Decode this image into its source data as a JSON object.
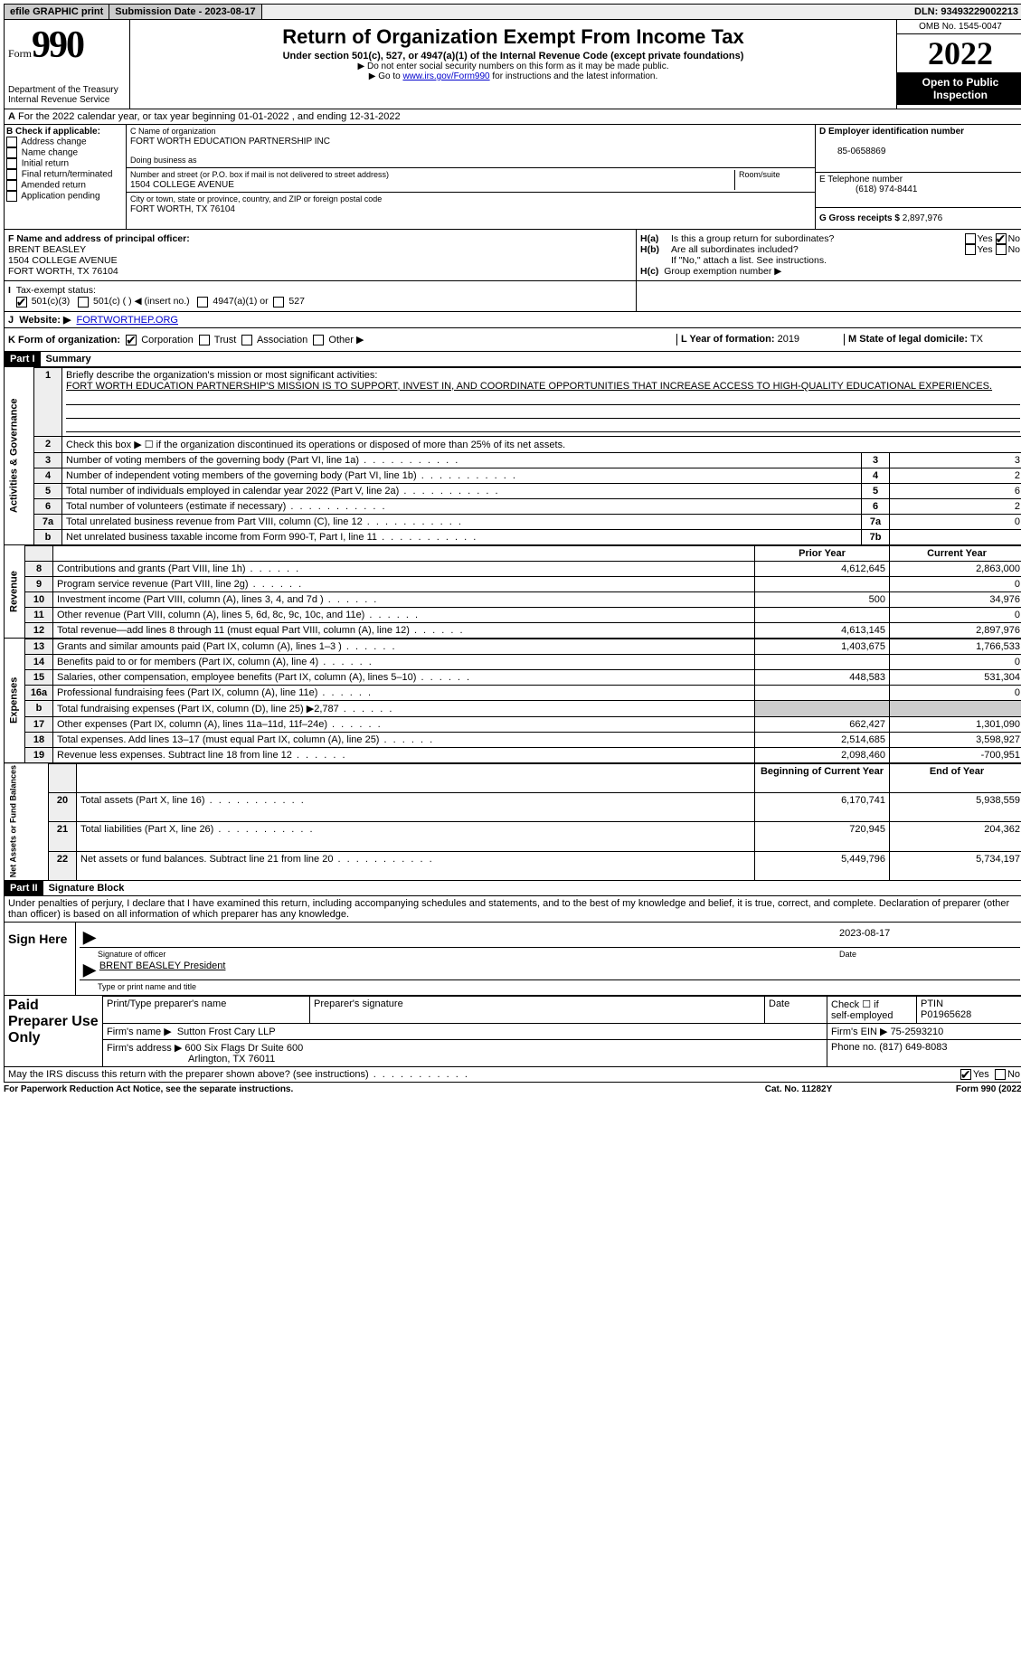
{
  "topbar": {
    "efile": "efile GRAPHIC print",
    "submission_label": "Submission Date - 2023-08-17",
    "dln": "DLN: 93493229002213"
  },
  "header": {
    "form_word": "Form",
    "form_num": "990",
    "dept": "Department of the Treasury",
    "irs": "Internal Revenue Service",
    "title": "Return of Organization Exempt From Income Tax",
    "subtitle": "Under section 501(c), 527, or 4947(a)(1) of the Internal Revenue Code (except private foundations)",
    "note1": "▶ Do not enter social security numbers on this form as it may be made public.",
    "note2_pre": "▶ Go to ",
    "note2_link": "www.irs.gov/Form990",
    "note2_post": " for instructions and the latest information.",
    "omb": "OMB No. 1545-0047",
    "year": "2022",
    "inspect": "Open to Public Inspection"
  },
  "line_a": "For the 2022 calendar year, or tax year beginning 01-01-2022    , and ending 12-31-2022",
  "box_b": {
    "title": "B Check if applicable:",
    "opts": [
      "Address change",
      "Name change",
      "Initial return",
      "Final return/terminated",
      "Amended return",
      "Application pending"
    ]
  },
  "box_c": {
    "label": "C Name of organization",
    "name": "FORT WORTH EDUCATION PARTNERSHIP INC",
    "dba_label": "Doing business as",
    "addr_label": "Number and street (or P.O. box if mail is not delivered to street address)",
    "room_label": "Room/suite",
    "addr": "1504 COLLEGE AVENUE",
    "city_label": "City or town, state or province, country, and ZIP or foreign postal code",
    "city": "FORT WORTH, TX  76104"
  },
  "box_d": {
    "label": "D Employer identification number",
    "val": "85-0658869"
  },
  "box_e": {
    "label": "E Telephone number",
    "val": "(618) 974-8441"
  },
  "box_g": {
    "label": "G Gross receipts $",
    "val": "2,897,976"
  },
  "box_f": {
    "label": "F  Name and address of principal officer:",
    "name": "BRENT BEASLEY",
    "addr1": "1504 COLLEGE AVENUE",
    "addr2": "FORT WORTH, TX  76104"
  },
  "box_h": {
    "a": "Is this a group return for subordinates?",
    "b": "Are all subordinates included?",
    "note": "If \"No,\" attach a list. See instructions.",
    "c": "Group exemption number ▶"
  },
  "box_i": {
    "label": "Tax-exempt status:",
    "opts": [
      "501(c)(3)",
      "501(c) (  ) ◀ (insert no.)",
      "4947(a)(1) or",
      "527"
    ]
  },
  "box_j": {
    "label": "Website: ▶",
    "val": "FORTWORTHEP.ORG"
  },
  "box_k": {
    "label": "K Form of organization:",
    "opts": [
      "Corporation",
      "Trust",
      "Association",
      "Other ▶"
    ]
  },
  "box_l": {
    "label": "L Year of formation:",
    "val": "2019"
  },
  "box_m": {
    "label": "M State of legal domicile:",
    "val": "TX"
  },
  "part1": {
    "bar": "Part I",
    "title": "Summary"
  },
  "mission_label": "Briefly describe the organization's mission or most significant activities:",
  "mission": "FORT WORTH EDUCATION PARTNERSHIP'S MISSION IS TO SUPPORT, INVEST IN, AND COORDINATE OPPORTUNITIES THAT INCREASE ACCESS TO HIGH-QUALITY EDUCATIONAL EXPERIENCES.",
  "line2": "Check this box ▶ ☐ if the organization discontinued its operations or disposed of more than 25% of its net assets.",
  "lines_ag": [
    {
      "n": "3",
      "t": "Number of voting members of the governing body (Part VI, line 1a)",
      "r": "3",
      "v": "3"
    },
    {
      "n": "4",
      "t": "Number of independent voting members of the governing body (Part VI, line 1b)",
      "r": "4",
      "v": "2"
    },
    {
      "n": "5",
      "t": "Total number of individuals employed in calendar year 2022 (Part V, line 2a)",
      "r": "5",
      "v": "6"
    },
    {
      "n": "6",
      "t": "Total number of volunteers (estimate if necessary)",
      "r": "6",
      "v": "2"
    },
    {
      "n": "7a",
      "t": "Total unrelated business revenue from Part VIII, column (C), line 12",
      "r": "7a",
      "v": "0"
    },
    {
      "n": "b",
      "t": "Net unrelated business taxable income from Form 990-T, Part I, line 11",
      "r": "7b",
      "v": ""
    }
  ],
  "hdr_prior": "Prior Year",
  "hdr_curr": "Current Year",
  "rev": [
    {
      "n": "8",
      "t": "Contributions and grants (Part VIII, line 1h)",
      "p": "4,612,645",
      "c": "2,863,000"
    },
    {
      "n": "9",
      "t": "Program service revenue (Part VIII, line 2g)",
      "p": "",
      "c": "0"
    },
    {
      "n": "10",
      "t": "Investment income (Part VIII, column (A), lines 3, 4, and 7d )",
      "p": "500",
      "c": "34,976"
    },
    {
      "n": "11",
      "t": "Other revenue (Part VIII, column (A), lines 5, 6d, 8c, 9c, 10c, and 11e)",
      "p": "",
      "c": "0"
    },
    {
      "n": "12",
      "t": "Total revenue—add lines 8 through 11 (must equal Part VIII, column (A), line 12)",
      "p": "4,613,145",
      "c": "2,897,976"
    }
  ],
  "exp": [
    {
      "n": "13",
      "t": "Grants and similar amounts paid (Part IX, column (A), lines 1–3 )",
      "p": "1,403,675",
      "c": "1,766,533"
    },
    {
      "n": "14",
      "t": "Benefits paid to or for members (Part IX, column (A), line 4)",
      "p": "",
      "c": "0"
    },
    {
      "n": "15",
      "t": "Salaries, other compensation, employee benefits (Part IX, column (A), lines 5–10)",
      "p": "448,583",
      "c": "531,304"
    },
    {
      "n": "16a",
      "t": "Professional fundraising fees (Part IX, column (A), line 11e)",
      "p": "",
      "c": "0"
    },
    {
      "n": "b",
      "t": "Total fundraising expenses (Part IX, column (D), line 25) ▶2,787",
      "p": "SHADE",
      "c": "SHADE"
    },
    {
      "n": "17",
      "t": "Other expenses (Part IX, column (A), lines 11a–11d, 11f–24e)",
      "p": "662,427",
      "c": "1,301,090"
    },
    {
      "n": "18",
      "t": "Total expenses. Add lines 13–17 (must equal Part IX, column (A), line 25)",
      "p": "2,514,685",
      "c": "3,598,927"
    },
    {
      "n": "19",
      "t": "Revenue less expenses. Subtract line 18 from line 12",
      "p": "2,098,460",
      "c": "-700,951"
    }
  ],
  "hdr_beg": "Beginning of Current Year",
  "hdr_end": "End of Year",
  "net": [
    {
      "n": "20",
      "t": "Total assets (Part X, line 16)",
      "p": "6,170,741",
      "c": "5,938,559"
    },
    {
      "n": "21",
      "t": "Total liabilities (Part X, line 26)",
      "p": "720,945",
      "c": "204,362"
    },
    {
      "n": "22",
      "t": "Net assets or fund balances. Subtract line 21 from line 20",
      "p": "5,449,796",
      "c": "5,734,197"
    }
  ],
  "part2": {
    "bar": "Part II",
    "title": "Signature Block"
  },
  "penalty": "Under penalties of perjury, I declare that I have examined this return, including accompanying schedules and statements, and to the best of my knowledge and belief, it is true, correct, and complete. Declaration of preparer (other than officer) is based on all information of which preparer has any knowledge.",
  "sign": {
    "here": "Sign Here",
    "sig_label": "Signature of officer",
    "date": "2023-08-17",
    "date_label": "Date",
    "name": "BRENT BEASLEY  President",
    "name_label": "Type or print name and title"
  },
  "prep": {
    "title": "Paid Preparer Use Only",
    "h1": "Print/Type preparer's name",
    "h2": "Preparer's signature",
    "h3": "Date",
    "h4a": "Check ☐ if",
    "h4b": "self-employed",
    "h5": "PTIN",
    "ptin": "P01965628",
    "firm_label": "Firm's name   ▶",
    "firm": "Sutton Frost Cary LLP",
    "ein_label": "Firm's EIN ▶",
    "ein": "75-2593210",
    "addr_label": "Firm's address ▶",
    "addr1": "600 Six Flags Dr Suite 600",
    "addr2": "Arlington, TX  76011",
    "phone_label": "Phone no.",
    "phone": "(817) 649-8083"
  },
  "discuss": "May the IRS discuss this return with the preparer shown above? (see instructions)",
  "footer": {
    "left": "For Paperwork Reduction Act Notice, see the separate instructions.",
    "mid": "Cat. No. 11282Y",
    "right": "Form 990 (2022)"
  },
  "labels": {
    "vert_ag": "Activities & Governance",
    "vert_rev": "Revenue",
    "vert_exp": "Expenses",
    "vert_net": "Net Assets or Fund Balances",
    "yes": "Yes",
    "no": "No",
    "ha": "H(a)",
    "hb": "H(b)",
    "hc": "H(c)"
  }
}
